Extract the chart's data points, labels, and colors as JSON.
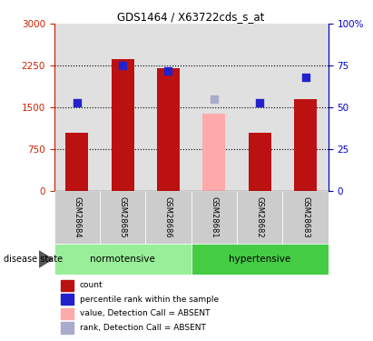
{
  "title": "GDS1464 / X63722cds_s_at",
  "samples": [
    "GSM28684",
    "GSM28685",
    "GSM28686",
    "GSM28681",
    "GSM28682",
    "GSM28683"
  ],
  "groups": [
    "normotensive",
    "normotensive",
    "normotensive",
    "hypertensive",
    "hypertensive",
    "hypertensive"
  ],
  "bar_values": [
    1050,
    2370,
    2200,
    null,
    1050,
    1650
  ],
  "bar_absent_values": [
    null,
    null,
    null,
    1380,
    null,
    null
  ],
  "rank_values": [
    53,
    75,
    72,
    null,
    53,
    68
  ],
  "rank_absent_values": [
    null,
    null,
    null,
    55,
    null,
    null
  ],
  "ylim_left": [
    0,
    3000
  ],
  "ylim_right": [
    0,
    100
  ],
  "yticks_left": [
    0,
    750,
    1500,
    2250,
    3000
  ],
  "yticks_right": [
    0,
    25,
    50,
    75,
    100
  ],
  "bar_color": "#bb1111",
  "bar_absent_color": "#ffaaaa",
  "rank_color": "#2222cc",
  "rank_absent_color": "#aaaacc",
  "normotensive_color": "#99ee99",
  "hypertensive_color": "#44cc44",
  "sample_label_bg": "#cccccc",
  "left_axis_color": "#cc2200",
  "right_axis_color": "#0000cc",
  "disease_state_label": "disease state",
  "legend_items": [
    {
      "label": "count",
      "color": "#bb1111"
    },
    {
      "label": "percentile rank within the sample",
      "color": "#2222cc"
    },
    {
      "label": "value, Detection Call = ABSENT",
      "color": "#ffaaaa"
    },
    {
      "label": "rank, Detection Call = ABSENT",
      "color": "#aaaacc"
    }
  ]
}
